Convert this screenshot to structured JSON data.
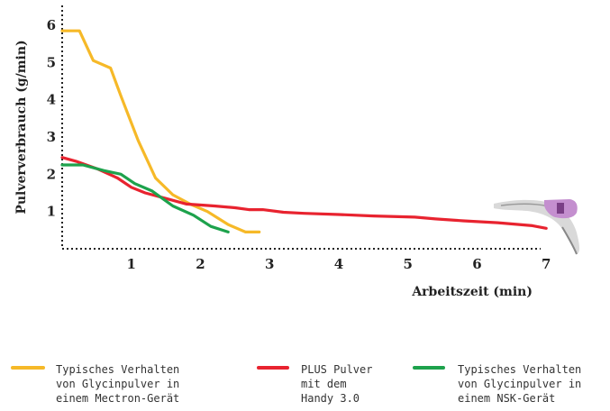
{
  "chart_data": {
    "type": "line",
    "title": "",
    "xlabel": "Arbeitszeit (min)",
    "ylabel": "Pulververbrauch (g/min)",
    "xlim": [
      0,
      7.5
    ],
    "ylim": [
      0,
      6.5
    ],
    "xticks": [
      "1",
      "2",
      "3",
      "4",
      "5",
      "6",
      "7"
    ],
    "yticks": [
      "1",
      "2",
      "3",
      "4",
      "5",
      "6"
    ],
    "grid": false,
    "legend": "bottom",
    "series": [
      {
        "key": "mectron",
        "name": "Typisches Verhalten\nvon Glycinpulver in\neinem Mectron-Gerät",
        "color": "#f6b928",
        "x": [
          0,
          0.25,
          0.45,
          0.7,
          0.85,
          1.1,
          1.35,
          1.6,
          1.85,
          2.1,
          2.4,
          2.65,
          2.85
        ],
        "y": [
          5.85,
          5.85,
          5.05,
          4.85,
          4.1,
          2.9,
          1.9,
          1.45,
          1.2,
          1.0,
          0.65,
          0.45,
          0.45
        ]
      },
      {
        "key": "plus",
        "name": "PLUS Pulver\nmit dem\nHandy 3.0",
        "color": "#e8232f",
        "x": [
          0,
          0.2,
          0.5,
          0.8,
          1.0,
          1.2,
          1.5,
          1.8,
          2.2,
          2.5,
          2.7,
          2.9,
          3.2,
          3.5,
          4.0,
          4.5,
          5.1,
          5.4,
          5.8,
          6.3,
          6.8,
          7.0
        ],
        "y": [
          2.45,
          2.35,
          2.15,
          1.9,
          1.65,
          1.5,
          1.35,
          1.2,
          1.15,
          1.1,
          1.05,
          1.05,
          0.98,
          0.95,
          0.92,
          0.88,
          0.85,
          0.8,
          0.75,
          0.7,
          0.62,
          0.55
        ]
      },
      {
        "key": "nsk",
        "name": "Typisches Verhalten\nvon Glycinpulver in\neinem NSK-Gerät",
        "color": "#1da24c",
        "x": [
          0,
          0.3,
          0.6,
          0.85,
          1.05,
          1.3,
          1.6,
          1.9,
          2.15,
          2.4
        ],
        "y": [
          2.25,
          2.25,
          2.1,
          2.0,
          1.75,
          1.55,
          1.15,
          0.9,
          0.6,
          0.45
        ]
      }
    ]
  },
  "legend_items": [
    {
      "key": "mectron",
      "label": "Typisches Verhalten\nvon Glycinpulver in\neinem Mectron-Gerät"
    },
    {
      "key": "plus",
      "label": "PLUS Pulver\nmit dem\nHandy 3.0"
    },
    {
      "key": "nsk",
      "label": "Typisches Verhalten\nvon Glycinpulver in\neinem NSK-Gerät"
    }
  ],
  "colors": {
    "axis": "#222222",
    "handpiece": "#d9d9d9",
    "handpiece_accent": "#c48fcf"
  }
}
